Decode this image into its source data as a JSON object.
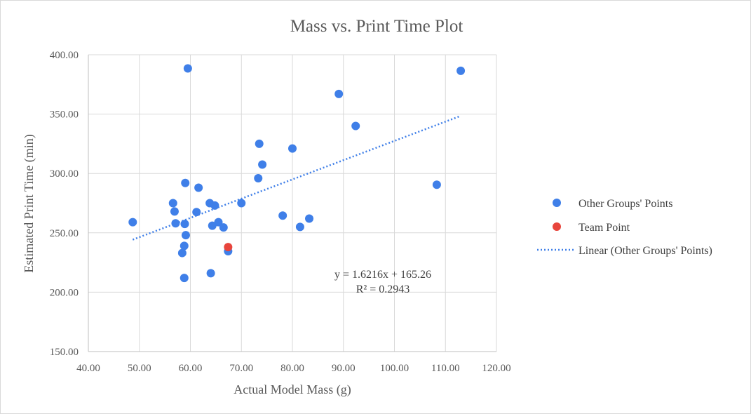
{
  "chart_data": {
    "type": "scatter",
    "title": "Mass vs. Print Time Plot",
    "xlabel": "Actual Model Mass (g)",
    "ylabel": "Estimated Print Time (min)",
    "xlim": [
      40,
      120
    ],
    "ylim": [
      150,
      400
    ],
    "x_ticks": [
      "40.00",
      "50.00",
      "60.00",
      "70.00",
      "80.00",
      "90.00",
      "100.00",
      "110.00",
      "120.00"
    ],
    "y_ticks": [
      "150.00",
      "200.00",
      "250.00",
      "300.00",
      "350.00",
      "400.00"
    ],
    "grid": true,
    "legend_position": "right",
    "series": [
      {
        "name": "Other Groups' Points",
        "color": "#3f7fe8",
        "points": [
          {
            "x": 48.7,
            "y": 259
          },
          {
            "x": 56.6,
            "y": 275
          },
          {
            "x": 56.9,
            "y": 268
          },
          {
            "x": 57.1,
            "y": 258
          },
          {
            "x": 58.4,
            "y": 233
          },
          {
            "x": 58.8,
            "y": 239
          },
          {
            "x": 58.8,
            "y": 212
          },
          {
            "x": 58.9,
            "y": 257.5
          },
          {
            "x": 59.0,
            "y": 292
          },
          {
            "x": 59.1,
            "y": 248
          },
          {
            "x": 59.5,
            "y": 388.5
          },
          {
            "x": 61.2,
            "y": 267.5
          },
          {
            "x": 61.6,
            "y": 288
          },
          {
            "x": 63.8,
            "y": 275
          },
          {
            "x": 64.0,
            "y": 216
          },
          {
            "x": 64.3,
            "y": 256
          },
          {
            "x": 64.8,
            "y": 273
          },
          {
            "x": 65.5,
            "y": 259
          },
          {
            "x": 66.5,
            "y": 254.5
          },
          {
            "x": 67.4,
            "y": 234.5
          },
          {
            "x": 70.0,
            "y": 275
          },
          {
            "x": 73.3,
            "y": 296
          },
          {
            "x": 73.5,
            "y": 325
          },
          {
            "x": 74.1,
            "y": 307.5
          },
          {
            "x": 78.1,
            "y": 264.5
          },
          {
            "x": 80.0,
            "y": 321
          },
          {
            "x": 81.5,
            "y": 255
          },
          {
            "x": 83.3,
            "y": 262
          },
          {
            "x": 89.1,
            "y": 367
          },
          {
            "x": 92.4,
            "y": 340
          },
          {
            "x": 108.3,
            "y": 290.5
          },
          {
            "x": 113.0,
            "y": 386.5
          }
        ]
      },
      {
        "name": "Team Point",
        "color": "#e8453c",
        "points": [
          {
            "x": 67.4,
            "y": 238
          }
        ]
      }
    ],
    "trendline": {
      "name": "Linear (Other Groups' Points)",
      "color": "#3f7fe8",
      "slope": 1.6216,
      "intercept": 165.26,
      "x_range": [
        48.7,
        113.0
      ],
      "equation": "y = 1.6216x + 165.26",
      "r_squared": "R² = 0.2943"
    }
  }
}
